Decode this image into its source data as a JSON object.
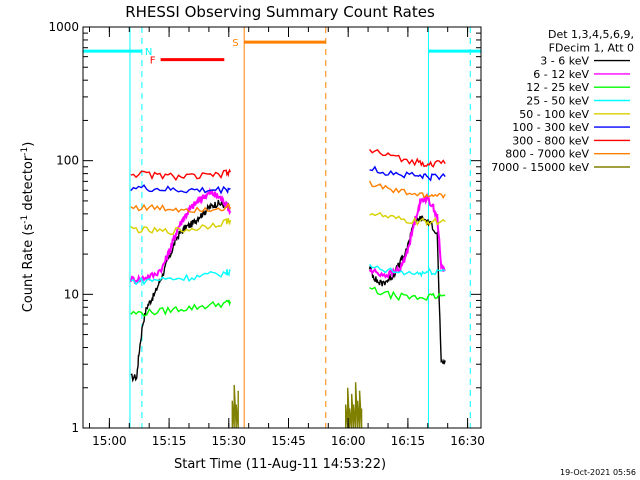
{
  "chart_data": {
    "type": "line",
    "title": "RHESSI Observing Summary Count Rates",
    "xlabel": "Start Time (11-Aug-11 14:53:22)",
    "ylabel_main": "Count Rate (s",
    "ylabel_sup1": "-1",
    "ylabel_mid": " detector",
    "ylabel_sup2": "-1",
    "ylabel_end": ")",
    "x_unit": "minutes since 14:53:22",
    "xlim": [
      0,
      100
    ],
    "ylim": [
      1,
      1000
    ],
    "y_scale": "log",
    "x_ticks": [
      {
        "label": "15:00",
        "value": 6.63
      },
      {
        "label": "15:15",
        "value": 21.63
      },
      {
        "label": "15:30",
        "value": 36.63
      },
      {
        "label": "15:45",
        "value": 51.63
      },
      {
        "label": "16:00",
        "value": 66.63
      },
      {
        "label": "16:15",
        "value": 81.63
      },
      {
        "label": "16:30",
        "value": 96.63
      }
    ],
    "y_ticks": [
      {
        "label": "1",
        "value": 1
      },
      {
        "label": "10",
        "value": 10
      },
      {
        "label": "100",
        "value": 100
      },
      {
        "label": "1000",
        "value": 1000
      }
    ],
    "legend_position": "right",
    "legend_header": [
      "Det 1,3,4,5,6,9,",
      "FDecim 1, Att 0"
    ],
    "series": [
      {
        "name": "3 - 6 keV",
        "color": "#000000",
        "segments": [
          {
            "x": [
              12,
              13.5,
              14,
              15,
              16,
              17,
              18,
              19,
              20,
              21,
              22,
              23,
              24,
              25,
              26,
              27,
              28,
              29,
              30,
              31,
              32,
              33,
              34,
              35,
              36,
              37
            ],
            "y": [
              2.4,
              2.4,
              3.5,
              6,
              8,
              9,
              10,
              12,
              14,
              17,
              20,
              24,
              28,
              30,
              32,
              33,
              35,
              38,
              40,
              43,
              45,
              47,
              48,
              47,
              46,
              44
            ]
          },
          {
            "x": [
              72,
              72.8,
              73.5,
              74,
              75,
              76,
              77,
              78,
              79,
              80,
              81,
              82,
              82.5,
              83,
              84,
              85,
              86,
              87,
              88,
              89,
              90,
              91
            ],
            "y": [
              16,
              14,
              13,
              12.5,
              12,
              12.5,
              13,
              14,
              16,
              18,
              20,
              25,
              30,
              34,
              36,
              37,
              36,
              34,
              32,
              28,
              3,
              3.2
            ]
          }
        ]
      },
      {
        "name": "6 - 12 keV",
        "color": "#ff00ff",
        "segments": [
          {
            "x": [
              12,
              14,
              16,
              18,
              20,
              21,
              22,
              23,
              24,
              25,
              26,
              27,
              28,
              29,
              30,
              31,
              32,
              33,
              34,
              35,
              36,
              37
            ],
            "y": [
              13,
              13,
              13.5,
              14,
              16,
              19,
              22,
              27,
              32,
              36,
              40,
              44,
              47,
              50,
              53,
              56,
              57,
              56,
              54,
              51,
              47,
              42
            ]
          },
          {
            "x": [
              72,
              74,
              76,
              78,
              80,
              81,
              82,
              83,
              84,
              85,
              86,
              87,
              88,
              89,
              90,
              91
            ],
            "y": [
              15,
              14.5,
              14,
              14.5,
              16,
              19,
              24,
              32,
              42,
              50,
              53,
              50,
              45,
              38,
              16,
              15
            ]
          }
        ]
      },
      {
        "name": "12 - 25 keV",
        "color": "#00ff00",
        "segments": [
          {
            "x": [
              12,
              16,
              20,
              24,
              28,
              32,
              36,
              37
            ],
            "y": [
              7.2,
              7.3,
              7.5,
              7.8,
              8,
              8.3,
              8.6,
              8.8
            ]
          },
          {
            "x": [
              72,
              76,
              80,
              84,
              86,
              88,
              91
            ],
            "y": [
              11,
              10,
              9.6,
              9.4,
              9.5,
              9.6,
              9.8
            ]
          }
        ]
      },
      {
        "name": "25 - 50 keV",
        "color": "#00ffff",
        "segments": [
          {
            "x": [
              12,
              16,
              20,
              24,
              28,
              32,
              36,
              37
            ],
            "y": [
              12.5,
              12.7,
              13,
              13.2,
              13.5,
              14,
              14.5,
              15
            ]
          },
          {
            "x": [
              72,
              76,
              80,
              84,
              86,
              88,
              91
            ],
            "y": [
              16,
              15,
              14.5,
              14.3,
              14.5,
              14.8,
              15
            ]
          }
        ]
      },
      {
        "name": "50 - 100 keV",
        "color": "#d8d000",
        "segments": [
          {
            "x": [
              12,
              16,
              20,
              24,
              28,
              32,
              36,
              37
            ],
            "y": [
              31,
              30,
              29.5,
              30,
              31,
              33,
              35,
              36
            ]
          },
          {
            "x": [
              72,
              76,
              80,
              84,
              86,
              88,
              91
            ],
            "y": [
              41,
              38,
              36,
              35,
              35,
              35,
              35
            ]
          }
        ]
      },
      {
        "name": "100 - 300 keV",
        "color": "#0000ff",
        "segments": [
          {
            "x": [
              12,
              16,
              20,
              24,
              28,
              32,
              36,
              37
            ],
            "y": [
              63,
              62,
              61,
              60,
              60,
              60,
              61,
              62
            ]
          },
          {
            "x": [
              72,
              76,
              80,
              84,
              86,
              88,
              91
            ],
            "y": [
              87,
              82,
              79,
              77,
              76,
              76,
              76
            ]
          }
        ]
      },
      {
        "name": "300 - 800 keV",
        "color": "#ff0000",
        "segments": [
          {
            "x": [
              12,
              16,
              20,
              24,
              28,
              32,
              36,
              37
            ],
            "y": [
              80,
              79,
              77,
              76,
              76,
              77,
              80,
              82
            ]
          },
          {
            "x": [
              72,
              76,
              80,
              84,
              86,
              88,
              91
            ],
            "y": [
              120,
              110,
              103,
              98,
              96,
              95,
              95
            ]
          }
        ]
      },
      {
        "name": "800 - 7000 keV",
        "color": "#ff8000",
        "segments": [
          {
            "x": [
              12,
              16,
              20,
              24,
              28,
              32,
              36,
              37
            ],
            "y": [
              45,
              44.5,
              44,
              43.5,
              43.5,
              44,
              45,
              45
            ]
          },
          {
            "x": [
              72,
              76,
              80,
              84,
              86,
              88,
              91
            ],
            "y": [
              68,
              62,
              58,
              56,
              55,
              55,
              56
            ]
          }
        ]
      },
      {
        "name": "7000 - 15000 keV",
        "color": "#808000",
        "segments": [
          {
            "x": [
              37.5,
              37.5,
              38,
              38,
              38.5,
              38.5,
              39,
              39
            ],
            "y": [
              1,
              1.6,
              1,
              2.1,
              1,
              1.5,
              1,
              1.9
            ]
          },
          {
            "x": [
              66,
              66,
              66.5,
              66.5,
              67,
              67,
              67.5,
              67.5,
              68,
              68,
              68.5,
              68.5,
              69,
              69,
              69.5,
              69.5,
              70,
              70
            ],
            "y": [
              1,
              1.5,
              1,
              2,
              1,
              1.4,
              1,
              1.8,
              1,
              1.5,
              1,
              2.2,
              1,
              1.6,
              1,
              1.9,
              1,
              1.4
            ]
          }
        ]
      }
    ],
    "flags": [
      {
        "label": "N",
        "color": "#00ffff",
        "x_label": 16.5,
        "bars": [
          {
            "x0": 0,
            "x1": 14.8
          },
          {
            "x0": 86.8,
            "x1": 100
          }
        ],
        "y": 660
      },
      {
        "label": "F",
        "color": "#ff0000",
        "x_label": 17.5,
        "bars": [
          {
            "x0": 19.5,
            "x1": 35.5
          }
        ],
        "y": 570
      },
      {
        "label": "S",
        "color": "#ff8000",
        "x_label": 38.3,
        "bars": [
          {
            "x0": 40.5,
            "x1": 61
          }
        ],
        "y": 770
      }
    ],
    "vertical_lines": [
      {
        "x": 11.8,
        "color": "#00ffff",
        "style": "solid"
      },
      {
        "x": 14.8,
        "color": "#00ffff",
        "style": "dashed"
      },
      {
        "x": 40.5,
        "color": "#ff8000",
        "style": "solid"
      },
      {
        "x": 61.0,
        "color": "#ff8000",
        "style": "dashed"
      },
      {
        "x": 86.8,
        "color": "#00ffff",
        "style": "solid"
      },
      {
        "x": 97.3,
        "color": "#00ffff",
        "style": "dashed"
      }
    ],
    "footer": "19-Oct-2021 05:56"
  }
}
